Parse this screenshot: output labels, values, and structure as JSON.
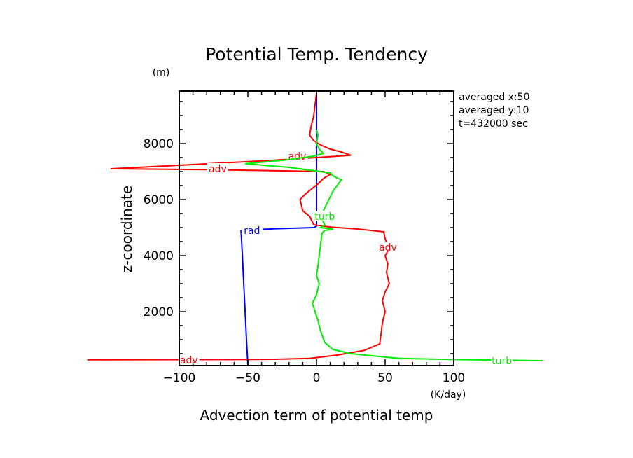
{
  "chart_data": {
    "type": "line",
    "title": "Potential Temp. Tendency",
    "xlabel": "Advection term of potential temp",
    "xunit": "(K/day)",
    "ylabel": "z-coordinate",
    "yunit": "(m)",
    "xlim": [
      -100,
      100
    ],
    "ylim": [
      100,
      9900
    ],
    "xticks": [
      -100,
      -50,
      0,
      50,
      100
    ],
    "xtick_labels": [
      "−100",
      "−50",
      "0",
      "50",
      "100"
    ],
    "yticks": [
      2000,
      4000,
      6000,
      8000
    ],
    "ytick_labels": [
      "2000",
      "4000",
      "6000",
      "8000"
    ],
    "info_lines": [
      "averaged  x:50",
      "averaged  y:10",
      "t=432000 sec"
    ],
    "grid": false,
    "series": [
      {
        "name": "rad",
        "color": "#0000ff",
        "labels": [
          {
            "text": "rad",
            "x": -47,
            "z": 4900
          }
        ],
        "points": [
          [
            -50,
            100
          ],
          [
            -51,
            1000
          ],
          [
            -52,
            2000
          ],
          [
            -53,
            3000
          ],
          [
            -54,
            4000
          ],
          [
            -55,
            4900
          ],
          [
            -30,
            4960
          ],
          [
            -2,
            5000
          ],
          [
            0,
            5050
          ],
          [
            0,
            6000
          ],
          [
            0,
            7000
          ],
          [
            0,
            8000
          ],
          [
            0,
            9800
          ]
        ]
      },
      {
        "name": "adv",
        "color": "#ff0000",
        "labels": [
          {
            "text": "adv",
            "x": -93,
            "z": 280
          },
          {
            "text": "adv",
            "x": -72,
            "z": 7100
          },
          {
            "text": "adv",
            "x": -14,
            "z": 7550
          },
          {
            "text": "adv",
            "x": 52,
            "z": 4300
          }
        ],
        "points": [
          [
            -167,
            280
          ],
          [
            -60,
            290
          ],
          [
            -30,
            300
          ],
          [
            -5,
            330
          ],
          [
            15,
            450
          ],
          [
            35,
            620
          ],
          [
            46,
            850
          ],
          [
            47,
            1200
          ],
          [
            48,
            1600
          ],
          [
            50,
            2000
          ],
          [
            48,
            2400
          ],
          [
            50,
            2700
          ],
          [
            53,
            3000
          ],
          [
            51,
            3400
          ],
          [
            52,
            3700
          ],
          [
            50,
            4000
          ],
          [
            53,
            4250
          ],
          [
            50,
            4600
          ],
          [
            49,
            4850
          ],
          [
            30,
            4950
          ],
          [
            10,
            5020
          ],
          [
            -2,
            5100
          ],
          [
            -5,
            5400
          ],
          [
            -10,
            5600
          ],
          [
            -12,
            6000
          ],
          [
            -8,
            6200
          ],
          [
            -3,
            6400
          ],
          [
            2,
            6600
          ],
          [
            5,
            6750
          ],
          [
            10,
            6900
          ],
          [
            5,
            7000
          ],
          [
            -80,
            7070
          ],
          [
            -150,
            7100
          ],
          [
            -90,
            7250
          ],
          [
            -40,
            7380
          ],
          [
            0,
            7500
          ],
          [
            25,
            7580
          ],
          [
            18,
            7700
          ],
          [
            10,
            7800
          ],
          [
            3,
            7950
          ],
          [
            -2,
            8100
          ],
          [
            -5,
            8300
          ],
          [
            -4,
            8600
          ],
          [
            -2,
            9000
          ],
          [
            0,
            9800
          ]
        ]
      },
      {
        "name": "turb",
        "color": "#00ee00",
        "labels": [
          {
            "text": "turb",
            "x": 6,
            "z": 5400
          },
          {
            "text": "turb",
            "x": 135,
            "z": 250
          }
        ],
        "points": [
          [
            165,
            250
          ],
          [
            100,
            290
          ],
          [
            60,
            330
          ],
          [
            25,
            500
          ],
          [
            12,
            650
          ],
          [
            6,
            900
          ],
          [
            3,
            1300
          ],
          [
            1,
            1700
          ],
          [
            -1,
            2000
          ],
          [
            -3,
            2300
          ],
          [
            0,
            2600
          ],
          [
            2,
            3000
          ],
          [
            0,
            3300
          ],
          [
            1,
            3600
          ],
          [
            2,
            4000
          ],
          [
            3,
            4400
          ],
          [
            4,
            4800
          ],
          [
            6,
            4900
          ],
          [
            12,
            4950
          ],
          [
            3,
            5000
          ],
          [
            6,
            5100
          ],
          [
            3,
            5400
          ],
          [
            6,
            5700
          ],
          [
            9,
            6000
          ],
          [
            12,
            6300
          ],
          [
            15,
            6500
          ],
          [
            18,
            6700
          ],
          [
            12,
            6850
          ],
          [
            10,
            6950
          ],
          [
            -20,
            7150
          ],
          [
            -52,
            7280
          ],
          [
            -25,
            7400
          ],
          [
            -2,
            7550
          ],
          [
            5,
            7650
          ],
          [
            2,
            7800
          ],
          [
            0,
            8000
          ],
          [
            1,
            8300
          ],
          [
            0,
            8500
          ]
        ]
      }
    ]
  }
}
